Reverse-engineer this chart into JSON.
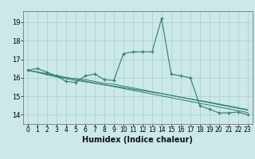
{
  "xlabel": "Humidex (Indice chaleur)",
  "x_values": [
    0,
    1,
    2,
    3,
    4,
    5,
    6,
    7,
    8,
    9,
    10,
    11,
    12,
    13,
    14,
    15,
    16,
    17,
    18,
    19,
    20,
    21,
    22,
    23
  ],
  "main_line": [
    16.4,
    16.5,
    16.3,
    16.1,
    15.8,
    15.75,
    16.1,
    16.2,
    15.9,
    15.85,
    17.3,
    17.4,
    17.4,
    17.4,
    19.2,
    16.2,
    16.1,
    16.0,
    14.5,
    14.3,
    14.1,
    14.1,
    14.15,
    14.0
  ],
  "trend1": [
    16.4,
    16.3,
    16.2,
    16.1,
    16.0,
    15.95,
    15.9,
    15.8,
    15.7,
    15.65,
    15.55,
    15.45,
    15.35,
    15.25,
    15.15,
    15.05,
    14.95,
    14.85,
    14.75,
    14.65,
    14.55,
    14.45,
    14.35,
    14.25
  ],
  "trend2": [
    16.4,
    16.3,
    16.15,
    16.05,
    15.95,
    15.85,
    15.78,
    15.7,
    15.62,
    15.55,
    15.47,
    15.38,
    15.3,
    15.22,
    15.14,
    15.05,
    14.95,
    14.86,
    14.77,
    14.68,
    14.58,
    14.48,
    14.38,
    14.28
  ],
  "trend3": [
    16.4,
    16.32,
    16.22,
    16.12,
    16.02,
    15.92,
    15.82,
    15.72,
    15.62,
    15.52,
    15.42,
    15.32,
    15.22,
    15.12,
    15.02,
    14.92,
    14.82,
    14.72,
    14.62,
    14.52,
    14.42,
    14.32,
    14.22,
    14.12
  ],
  "line_color": "#2e7d6e",
  "bg_color": "#cce8e8",
  "grid_color": "#aacfcf",
  "ylim": [
    13.5,
    19.6
  ],
  "yticks": [
    14,
    15,
    16,
    17,
    18,
    19
  ],
  "xlabel_fontsize": 7,
  "tick_fontsize": 5.5
}
